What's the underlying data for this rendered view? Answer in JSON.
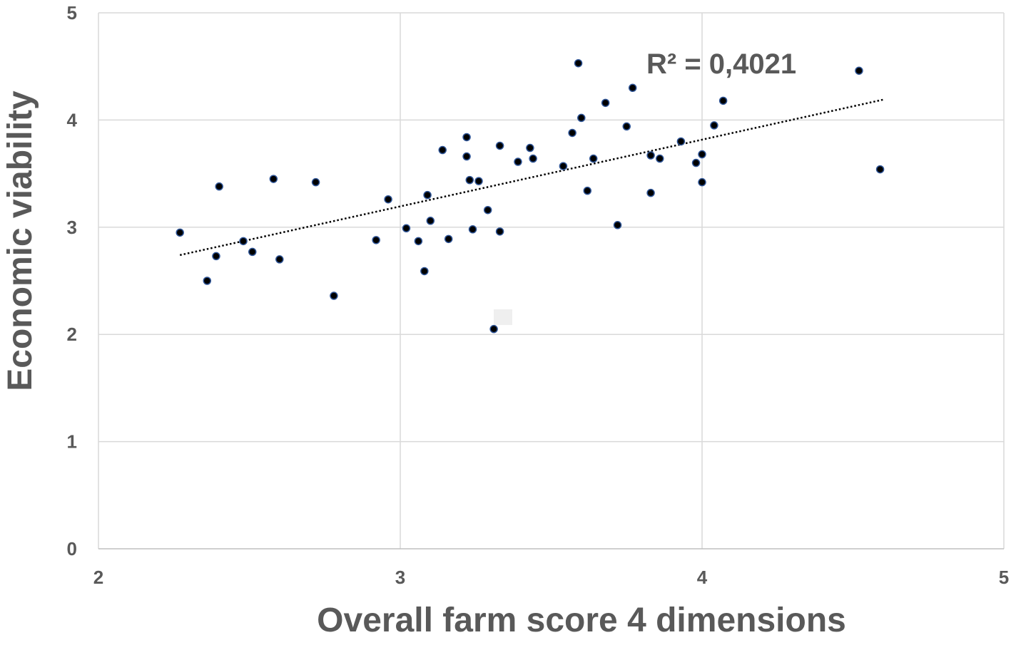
{
  "chart_data": {
    "type": "scatter",
    "xlabel": "Overall farm score 4 dimensions",
    "ylabel": "Economic viability",
    "xlim": [
      2,
      5
    ],
    "ylim": [
      0,
      5
    ],
    "xticks": [
      2,
      3,
      4,
      5
    ],
    "yticks": [
      0,
      1,
      2,
      3,
      4,
      5
    ],
    "grid": true,
    "series": [
      {
        "marker": "circle",
        "x": [
          2.27,
          2.36,
          2.39,
          2.4,
          2.48,
          2.51,
          2.58,
          2.6,
          2.72,
          2.78,
          2.92,
          2.96,
          3.02,
          3.06,
          3.08,
          3.09,
          3.1,
          3.14,
          3.16,
          3.22,
          3.22,
          3.23,
          3.24,
          3.26,
          3.29,
          3.31,
          3.33,
          3.33,
          3.39,
          3.43,
          3.44,
          3.54,
          3.57,
          3.59,
          3.6,
          3.62,
          3.64,
          3.68,
          3.72,
          3.75,
          3.77,
          3.83,
          3.83,
          3.86,
          3.93,
          3.98,
          4.0,
          4.0,
          4.04,
          4.07,
          4.52,
          4.59
        ],
        "y": [
          2.95,
          2.5,
          2.73,
          3.38,
          2.87,
          2.77,
          3.45,
          2.7,
          3.42,
          2.36,
          2.88,
          3.26,
          2.99,
          2.87,
          2.59,
          3.3,
          3.06,
          3.72,
          2.89,
          3.84,
          3.66,
          3.44,
          2.98,
          3.43,
          3.16,
          2.05,
          2.96,
          3.76,
          3.61,
          3.74,
          3.64,
          3.57,
          3.88,
          4.53,
          4.02,
          3.34,
          3.64,
          4.16,
          3.02,
          3.94,
          4.3,
          3.32,
          3.67,
          3.64,
          3.8,
          3.6,
          3.68,
          3.42,
          3.95,
          4.18,
          4.46,
          3.54
        ]
      }
    ],
    "trendline": {
      "type": "linear",
      "style": "dotted",
      "x": [
        2.27,
        4.6
      ],
      "y": [
        2.74,
        4.19
      ]
    },
    "annotations": [
      "R² = 0,4021"
    ],
    "colors": {
      "marker_fill": "#000000",
      "marker_stroke": "#2f5597",
      "trendline": "#000000",
      "text": "#595959",
      "grid": "#d9d9d9",
      "axis": "#bfbfbf"
    }
  }
}
